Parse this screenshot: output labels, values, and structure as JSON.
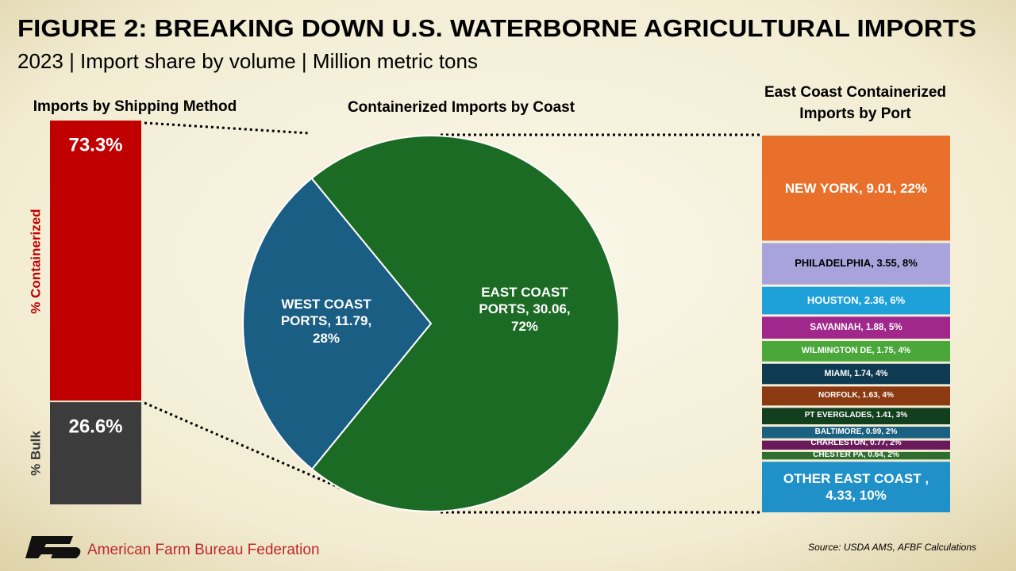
{
  "title": "FIGURE 2: BREAKING DOWN U.S. WATERBORNE AGRICULTURAL IMPORTS",
  "subtitle": "2023 | Import share by volume | Million metric tons",
  "source": "Source: USDA AMS, AFBF Calculations",
  "brand": "American Farm Bureau Federation",
  "chart_data": [
    {
      "type": "stacked-bar",
      "title": "Imports by Shipping Method",
      "series": [
        {
          "name": "% Containerized",
          "color": "#c00000",
          "values": [
            73.3
          ],
          "value_labels": [
            "73.3%"
          ]
        },
        {
          "name": "% Bulk",
          "color": "#3c3c3c",
          "values": [
            26.6
          ],
          "value_labels": [
            "26.6%"
          ]
        }
      ]
    },
    {
      "type": "pie",
      "title": "Containerized Imports by Coast",
      "values": [
        11.79,
        30.06
      ],
      "value_labels": [
        "WEST COAST PORTS, 11.79, 28%",
        "EAST COAST PORTS, 30.06, 72%"
      ],
      "colors": [
        "#1a5e84",
        "#1c6b24"
      ]
    },
    {
      "type": "stacked-column",
      "title": "East Coast Containerized Imports by Port",
      "values": [
        9.01,
        3.55,
        2.36,
        1.88,
        1.75,
        1.74,
        1.63,
        1.41,
        0.99,
        0.77,
        0.64,
        4.33
      ],
      "value_labels": [
        "NEW YORK, 9.01, 22%",
        "PHILADELPHIA, 3.55, 8%",
        "HOUSTON, 2.36, 6%",
        "SAVANNAH, 1.88, 5%",
        "WILMINGTON DE, 1.75, 4%",
        "MIAMI, 1.74, 4%",
        "NORFOLK, 1.63, 4%",
        "PT EVERGLADES, 1.41, 3%",
        "BALTIMORE, 0.99, 2%",
        "CHARLESTON, 0.77, 2%",
        "CHESTER PA, 0.64, 2%",
        "OTHER EAST COAST , 4.33, 10%"
      ],
      "colors": [
        "#e8702a",
        "#a9a3dc",
        "#1ea0d8",
        "#a0288c",
        "#4aa83a",
        "#0e3a52",
        "#8b3a12",
        "#12401e",
        "#1a6080",
        "#6a1a5a",
        "#2e6e2e",
        "#2090c8"
      ]
    }
  ]
}
